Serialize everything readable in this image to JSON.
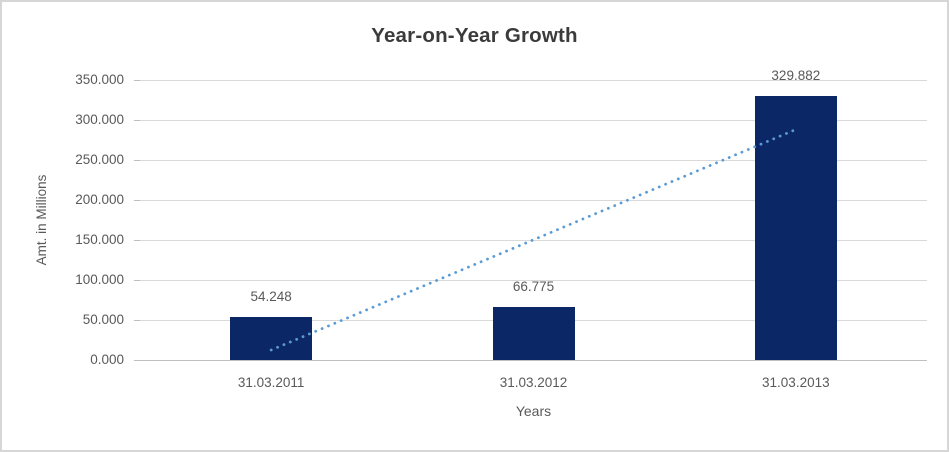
{
  "chart_data": {
    "type": "bar",
    "title": "Year-on-Year Growth",
    "categories": [
      "31.03.2011",
      "31.03.2012",
      "31.03.2013"
    ],
    "values": [
      54.248,
      66.775,
      329.882
    ],
    "value_labels": [
      "54.248",
      "66.775",
      "329.882"
    ],
    "xlabel": "Years",
    "ylabel": "Amt. in Millions",
    "ylim": [
      0,
      350
    ],
    "yticks": [
      0,
      50,
      100,
      150,
      200,
      250,
      300,
      350
    ],
    "ytick_labels": [
      "0.000",
      "50.000",
      "100.000",
      "150.000",
      "200.000",
      "250.000",
      "300.000",
      "350.000"
    ],
    "grid": true,
    "legend": "none",
    "trendline": {
      "type": "linear",
      "style": "dotted",
      "endpoints_y": [
        12.48,
        288.12
      ]
    },
    "colors": {
      "bar": "#0c2765",
      "trendline": "#5b9bd5",
      "title_text": "#3b3b3b",
      "axis_text": "#595959",
      "gridline": "#d9d9d9",
      "axis_line": "#bfbfbf",
      "background": "#ffffff",
      "border": "#d6d6d6"
    }
  }
}
